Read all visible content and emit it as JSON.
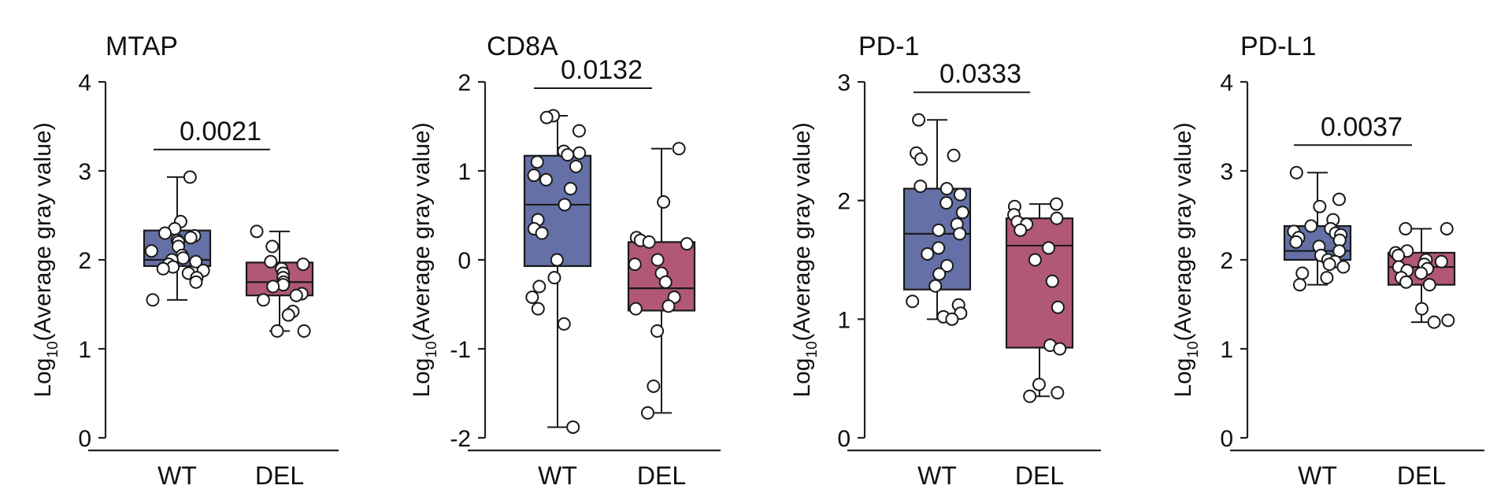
{
  "chart_data": [
    {
      "type": "box",
      "title": "MTAP",
      "ylabel_main": "Log",
      "ylabel_sub": "10",
      "ylabel_rest": "(Average gray value)",
      "ylim": [
        0,
        4
      ],
      "yticks": [
        0,
        1,
        2,
        3,
        4
      ],
      "categories": [
        "WT",
        "DEL"
      ],
      "p_value": "0.0021",
      "groups": [
        {
          "name": "WT",
          "color": "#6470a6",
          "q1": 1.93,
          "median": 2.0,
          "q3": 2.33,
          "min": 1.55,
          "max": 2.93,
          "points": [
            2.93,
            2.43,
            2.35,
            2.3,
            2.27,
            2.25,
            2.22,
            2.2,
            2.15,
            2.1,
            2.05,
            2.02,
            2.0,
            1.98,
            1.95,
            1.92,
            1.9,
            1.88,
            1.85,
            1.8,
            1.75,
            1.55
          ]
        },
        {
          "name": "DEL",
          "color": "#b15874",
          "q1": 1.6,
          "median": 1.75,
          "q3": 1.97,
          "min": 1.2,
          "max": 2.32,
          "points": [
            2.32,
            2.15,
            1.98,
            1.95,
            1.9,
            1.85,
            1.8,
            1.75,
            1.72,
            1.7,
            1.62,
            1.6,
            1.55,
            1.42,
            1.38,
            1.2,
            1.2
          ]
        }
      ]
    },
    {
      "type": "box",
      "title": "CD8A",
      "ylabel_main": "Log",
      "ylabel_sub": "10",
      "ylabel_rest": "(Average gray value)",
      "ylim": [
        -2,
        2
      ],
      "yticks": [
        -2,
        -1,
        0,
        1,
        2
      ],
      "categories": [
        "WT",
        "DEL"
      ],
      "p_value": "0.0132",
      "groups": [
        {
          "name": "WT",
          "color": "#6470a6",
          "q1": -0.07,
          "median": 0.62,
          "q3": 1.17,
          "min": -1.88,
          "max": 1.62,
          "points": [
            1.62,
            1.6,
            1.45,
            1.22,
            1.2,
            1.18,
            1.1,
            1.05,
            0.95,
            0.9,
            0.8,
            0.62,
            0.45,
            0.35,
            0.3,
            0.0,
            -0.2,
            -0.3,
            -0.42,
            -0.55,
            -0.72,
            -1.88
          ]
        },
        {
          "name": "DEL",
          "color": "#b15874",
          "q1": -0.57,
          "median": -0.32,
          "q3": 0.2,
          "min": -1.72,
          "max": 1.25,
          "points": [
            1.25,
            0.65,
            0.25,
            0.22,
            0.2,
            0.18,
            0.0,
            -0.05,
            -0.15,
            -0.25,
            -0.42,
            -0.52,
            -0.55,
            -0.8,
            -1.42,
            -1.72
          ]
        }
      ]
    },
    {
      "type": "box",
      "title": "PD-1",
      "ylabel_main": "Log",
      "ylabel_sub": "10",
      "ylabel_rest": "(Average gray value)",
      "ylim": [
        0,
        3
      ],
      "yticks": [
        0,
        1,
        2,
        3
      ],
      "categories": [
        "WT",
        "DEL"
      ],
      "p_value": "0.0333",
      "groups": [
        {
          "name": "WT",
          "color": "#6470a6",
          "q1": 1.25,
          "median": 1.72,
          "q3": 2.1,
          "min": 1.0,
          "max": 2.68,
          "points": [
            2.68,
            2.4,
            2.38,
            2.35,
            2.12,
            2.1,
            2.05,
            1.98,
            1.9,
            1.8,
            1.75,
            1.72,
            1.6,
            1.55,
            1.45,
            1.38,
            1.28,
            1.15,
            1.12,
            1.05,
            1.02,
            1.0
          ]
        },
        {
          "name": "DEL",
          "color": "#b15874",
          "q1": 0.76,
          "median": 1.62,
          "q3": 1.85,
          "min": 0.35,
          "max": 1.97,
          "points": [
            1.97,
            1.95,
            1.88,
            1.85,
            1.82,
            1.8,
            1.75,
            1.6,
            1.5,
            1.32,
            1.1,
            0.78,
            0.75,
            0.45,
            0.38,
            0.35
          ]
        }
      ]
    },
    {
      "type": "box",
      "title": "PD-L1",
      "ylabel_main": "Log",
      "ylabel_sub": "10",
      "ylabel_rest": "(Average gray value)",
      "ylim": [
        0,
        4
      ],
      "yticks": [
        0,
        1,
        2,
        3,
        4
      ],
      "categories": [
        "WT",
        "DEL"
      ],
      "p_value": "0.0037",
      "groups": [
        {
          "name": "WT",
          "color": "#6470a6",
          "q1": 2.0,
          "median": 2.1,
          "q3": 2.38,
          "min": 1.72,
          "max": 2.98,
          "points": [
            2.98,
            2.68,
            2.6,
            2.45,
            2.38,
            2.35,
            2.32,
            2.3,
            2.28,
            2.25,
            2.22,
            2.2,
            2.15,
            2.1,
            2.05,
            2.0,
            1.98,
            1.95,
            1.92,
            1.85,
            1.8,
            1.72
          ]
        },
        {
          "name": "DEL",
          "color": "#b15874",
          "q1": 1.72,
          "median": 1.92,
          "q3": 2.08,
          "min": 1.3,
          "max": 2.35,
          "points": [
            2.35,
            2.35,
            2.1,
            2.08,
            2.05,
            2.0,
            1.98,
            1.95,
            1.92,
            1.9,
            1.88,
            1.85,
            1.8,
            1.75,
            1.72,
            1.45,
            1.32,
            1.3
          ]
        }
      ]
    }
  ]
}
